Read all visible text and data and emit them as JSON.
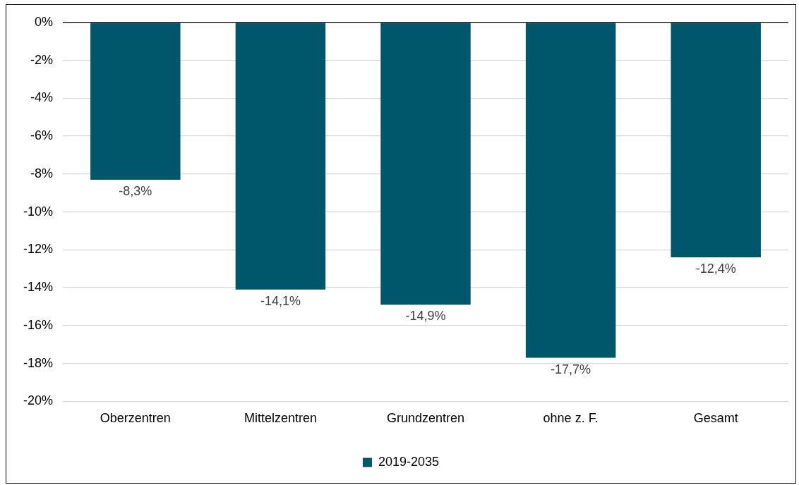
{
  "chart_data": {
    "type": "bar",
    "categories": [
      "Oberzentren",
      "Mittelzentren",
      "Grundzentren",
      "ohne z. F.",
      "Gesamt"
    ],
    "series": [
      {
        "name": "2019-2035",
        "color": "#00566b",
        "values": [
          -8.3,
          -14.1,
          -14.9,
          -17.7,
          -12.4
        ],
        "value_labels": [
          "-8,3%",
          "-14,1%",
          "-14,9%",
          "-17,7%",
          "-12,4%"
        ]
      }
    ],
    "ylim": [
      -20,
      0
    ],
    "yticks": [
      {
        "value": 0,
        "label": "0%"
      },
      {
        "value": -2,
        "label": "-2%"
      },
      {
        "value": -4,
        "label": "-4%"
      },
      {
        "value": -6,
        "label": "-6%"
      },
      {
        "value": -8,
        "label": "-8%"
      },
      {
        "value": -10,
        "label": "-10%"
      },
      {
        "value": -12,
        "label": "-12%"
      },
      {
        "value": -14,
        "label": "-14%"
      },
      {
        "value": -16,
        "label": "-16%"
      },
      {
        "value": -18,
        "label": "-18%"
      },
      {
        "value": -20,
        "label": "-20%"
      }
    ],
    "grid": "y",
    "legend": "bottom"
  }
}
